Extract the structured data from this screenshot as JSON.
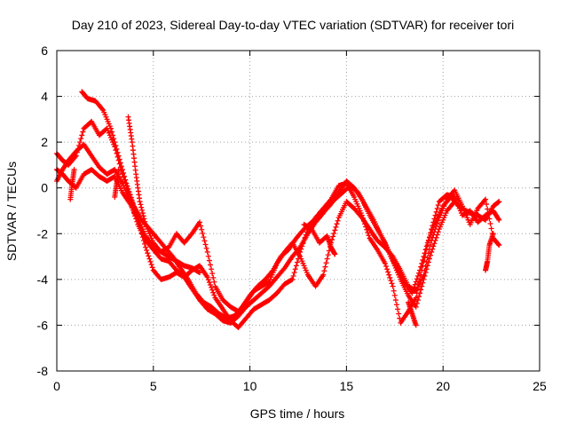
{
  "chart_data": {
    "type": "scatter",
    "title": "Day 210 of 2023, Sidereal Day-to-day VTEC variation (SDTVAR) for receiver tori",
    "xlabel": "GPS time / hours",
    "ylabel": "SDTVAR / TECUs",
    "xlim": [
      0,
      25
    ],
    "ylim": [
      -8,
      6
    ],
    "xticks": [
      "0",
      "5",
      "10",
      "15",
      "20",
      "25"
    ],
    "yticks": [
      "-8",
      "-6",
      "-4",
      "-2",
      "0",
      "2",
      "4",
      "6"
    ],
    "grid": true,
    "marker": "+",
    "series": [
      {
        "name": "trace-1",
        "color": "#ff0000",
        "x": [
          0.0,
          0.3,
          0.6,
          1.0,
          1.4,
          1.8,
          2.2,
          2.6,
          3.0,
          3.4,
          3.8,
          4.2,
          4.6,
          5.0,
          5.4,
          5.8,
          6.2,
          6.6,
          7.0,
          7.4,
          7.8,
          8.2,
          8.6,
          9.0,
          9.4,
          9.8,
          10.2,
          10.6,
          11.0,
          11.4,
          11.8,
          12.2,
          12.6,
          13.0,
          13.4,
          13.8,
          14.2,
          14.6,
          15.0,
          15.4,
          15.8,
          16.2,
          16.6,
          17.0,
          17.4,
          17.8,
          18.2,
          18.6,
          19.0,
          19.4,
          19.8,
          20.2,
          20.6,
          21.0,
          21.4,
          21.8,
          22.2,
          22.6,
          22.9
        ],
        "y": [
          0.3,
          0.8,
          1.2,
          1.6,
          1.9,
          1.4,
          0.9,
          0.6,
          0.8,
          0.2,
          -0.6,
          -1.6,
          -2.3,
          -2.7,
          -3.1,
          -3.2,
          -3.6,
          -3.9,
          -4.4,
          -4.9,
          -5.3,
          -5.5,
          -5.8,
          -5.9,
          -5.6,
          -5.2,
          -4.9,
          -4.6,
          -4.3,
          -3.9,
          -3.5,
          -3.0,
          -2.6,
          -2.0,
          -1.5,
          -1.1,
          -0.6,
          -0.2,
          0.3,
          0.0,
          -0.5,
          -1.2,
          -1.8,
          -2.4,
          -3.2,
          -4.0,
          -4.7,
          -5.2,
          -4.0,
          -2.8,
          -1.8,
          -1.0,
          -0.6,
          -0.9,
          -1.1,
          -1.2,
          -1.4,
          -0.8,
          -0.6
        ]
      },
      {
        "name": "trace-2",
        "color": "#ff0000",
        "x": [
          0.0,
          0.3,
          0.6,
          1.0,
          1.4,
          1.8,
          2.2,
          2.6,
          3.0,
          3.4,
          3.8,
          4.2,
          4.6,
          5.0,
          5.4,
          5.8,
          6.2,
          6.6,
          7.0,
          7.4,
          7.8,
          8.2,
          8.6,
          9.0,
          9.4,
          9.8,
          10.2,
          10.6,
          11.0,
          11.4,
          11.8,
          12.2,
          12.6,
          13.0,
          13.4,
          13.8,
          14.2,
          14.6,
          15.0,
          15.4,
          15.8,
          16.2,
          16.6,
          17.0,
          17.4,
          17.8,
          18.2,
          18.6,
          19.0,
          19.4,
          19.8,
          20.2,
          20.6,
          21.0,
          21.4,
          21.8,
          22.2,
          22.6,
          22.9
        ],
        "y": [
          1.5,
          1.2,
          1.0,
          1.4,
          2.6,
          2.9,
          2.3,
          2.6,
          1.8,
          0.6,
          -0.4,
          -1.3,
          -2.1,
          -2.6,
          -2.8,
          -2.6,
          -2.0,
          -2.4,
          -2.0,
          -1.5,
          -2.8,
          -4.3,
          -4.9,
          -5.2,
          -5.4,
          -5.0,
          -4.5,
          -4.3,
          -4.1,
          -3.3,
          -2.8,
          -2.4,
          -3.0,
          -3.8,
          -4.3,
          -3.8,
          -2.4,
          -1.3,
          -0.6,
          -0.9,
          -1.3,
          -1.8,
          -2.3,
          -2.6,
          -3.0,
          -3.6,
          -4.3,
          -4.5,
          -3.8,
          -2.3,
          -1.3,
          -0.5,
          -0.1,
          -0.8,
          -1.6,
          -0.9,
          -0.5,
          -2.2,
          -2.5
        ]
      },
      {
        "name": "trace-3",
        "color": "#ff0000",
        "x": [
          0.0,
          0.3,
          0.6,
          1.0,
          1.4,
          1.8,
          2.2,
          2.6,
          3.0,
          3.4,
          3.8,
          4.2,
          4.6,
          5.0,
          5.4,
          5.8,
          6.2,
          6.6,
          7.0,
          7.4,
          7.8,
          8.2,
          8.6,
          9.0,
          9.4,
          9.8,
          10.2,
          10.6,
          11.0,
          11.4,
          11.8,
          12.2,
          12.6,
          13.0,
          13.4,
          13.8,
          14.2,
          14.6,
          15.0,
          15.4,
          15.8,
          16.2,
          16.6,
          17.0,
          17.4,
          17.8,
          18.2,
          18.6,
          19.0,
          19.4,
          19.8,
          20.2,
          20.6,
          21.0,
          21.4,
          21.8,
          22.2,
          22.6,
          22.9
        ],
        "y": [
          0.8,
          0.6,
          0.3,
          0.0,
          0.6,
          0.8,
          0.5,
          0.3,
          0.5,
          -0.2,
          -0.7,
          -1.4,
          -2.6,
          -3.6,
          -4.0,
          -3.9,
          -3.7,
          -3.9,
          -3.6,
          -3.4,
          -3.9,
          -4.8,
          -5.3,
          -5.8,
          -6.1,
          -5.7,
          -5.3,
          -5.1,
          -4.9,
          -4.6,
          -4.2,
          -4.0,
          -2.8,
          -1.8,
          -1.3,
          -0.9,
          -0.5,
          0.1,
          0.2,
          -0.4,
          -1.2,
          -2.2,
          -2.7,
          -3.3,
          -4.3,
          -5.9,
          -5.4,
          -4.8,
          -3.2,
          -1.8,
          -0.6,
          -0.3,
          -0.4,
          -1.2,
          -1.0,
          -1.5,
          -1.2,
          -1.0,
          -1.4
        ]
      },
      {
        "name": "trace-4",
        "color": "#ff0000",
        "x": [
          1.3,
          1.6,
          2.0,
          2.4,
          2.8,
          3.2,
          3.6,
          4.0,
          4.4,
          4.8,
          5.2,
          5.6,
          6.0,
          6.4,
          6.8,
          7.2,
          7.6,
          8.0,
          8.4,
          8.8,
          9.2,
          9.6,
          10.0,
          10.4,
          10.8,
          11.2,
          11.6,
          12.0,
          12.4,
          12.8,
          13.2,
          13.6,
          14.0,
          14.4,
          14.8,
          15.2,
          15.6,
          16.0,
          16.4,
          16.8,
          17.2,
          17.6,
          18.0,
          18.4,
          18.8,
          19.2,
          19.6,
          20.0,
          20.4,
          20.8
        ],
        "y": [
          4.2,
          3.9,
          3.8,
          3.4,
          2.6,
          1.4,
          0.2,
          -0.8,
          -1.4,
          -1.8,
          -2.2,
          -2.6,
          -3.0,
          -3.5,
          -4.0,
          -4.6,
          -5.0,
          -5.2,
          -5.5,
          -5.7,
          -5.6,
          -5.2,
          -4.7,
          -4.3,
          -4.0,
          -3.6,
          -3.0,
          -2.7,
          -2.2,
          -1.8,
          -1.5,
          -1.2,
          -0.9,
          -0.5,
          -0.2,
          0.1,
          -0.2,
          -0.8,
          -1.4,
          -2.1,
          -2.8,
          -3.5,
          -4.1,
          -4.6,
          -3.6,
          -2.4,
          -1.5,
          -0.8,
          -0.4,
          -0.8
        ]
      },
      {
        "name": "trace-5",
        "color": "#ff0000",
        "x": [
          3.7,
          3.9,
          4.1,
          4.3,
          4.6,
          5.0,
          5.4,
          5.8,
          6.2,
          6.6,
          7.0,
          7.4
        ],
        "y": [
          3.1,
          2.0,
          0.6,
          -0.6,
          -1.6,
          -2.4,
          -2.8,
          -3.0,
          -3.2,
          -3.4,
          -3.5,
          -3.7
        ]
      },
      {
        "name": "trace-6",
        "color": "#ff0000",
        "x": [
          12.8,
          13.2,
          13.6,
          14.0,
          14.2,
          14.4
        ],
        "y": [
          -1.6,
          -1.8,
          -2.4,
          -2.1,
          -2.6,
          -2.9
        ]
      },
      {
        "name": "trace-7",
        "color": "#ff0000",
        "x": [
          18.2,
          18.4,
          18.6
        ],
        "y": [
          -5.0,
          -5.5,
          -6.0
        ]
      },
      {
        "name": "trace-8",
        "color": "#ff0000",
        "x": [
          22.2,
          22.3,
          22.4,
          22.6
        ],
        "y": [
          -3.6,
          -3.2,
          -2.5,
          -2.0
        ]
      },
      {
        "name": "trace-9",
        "color": "#ff0000",
        "x": [
          0.7,
          0.8,
          0.9
        ],
        "y": [
          -0.5,
          0.2,
          0.8
        ]
      },
      {
        "name": "trace-10",
        "color": "#ff0000",
        "x": [
          3.0,
          3.1,
          3.2
        ],
        "y": [
          -0.4,
          0.2,
          0.8
        ]
      }
    ]
  }
}
